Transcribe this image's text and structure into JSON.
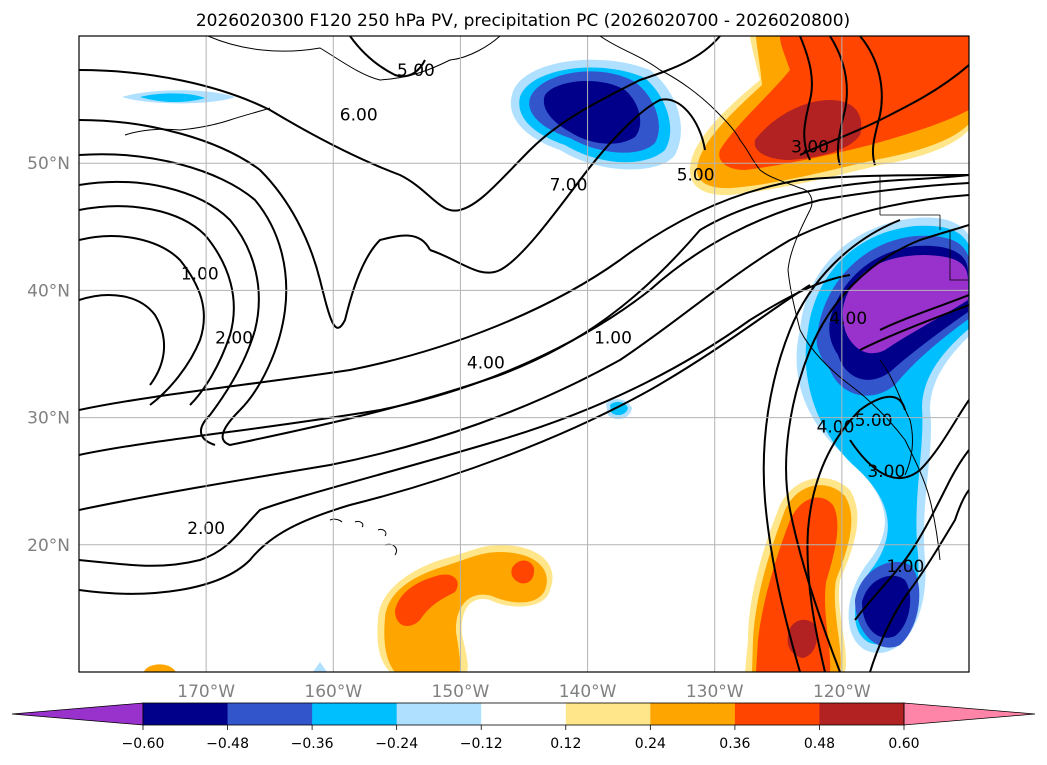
{
  "chart_data": {
    "type": "contour_map",
    "title": "2026020300 F120 250 hPa PV, precipitation PC (2026020700 - 2026020800)",
    "lon_range": [
      -180,
      -110
    ],
    "lat_range": [
      10,
      60
    ],
    "lat_ticks": [
      {
        "value": 20,
        "label": "20°N"
      },
      {
        "value": 30,
        "label": "30°N"
      },
      {
        "value": 40,
        "label": "40°N"
      },
      {
        "value": 50,
        "label": "50°N"
      }
    ],
    "lon_ticks": [
      {
        "value": -170,
        "label": "170°W"
      },
      {
        "value": -160,
        "label": "160°W"
      },
      {
        "value": -150,
        "label": "150°W"
      },
      {
        "value": -140,
        "label": "140°W"
      },
      {
        "value": -130,
        "label": "130°W"
      },
      {
        "value": -120,
        "label": "120°W"
      }
    ],
    "colorbar": {
      "levels": [
        -0.6,
        -0.48,
        -0.36,
        -0.24,
        -0.12,
        0.12,
        0.24,
        0.36,
        0.48,
        0.6
      ],
      "tick_labels": [
        "−0.60",
        "−0.48",
        "−0.36",
        "−0.24",
        "−0.12",
        "0.12",
        "0.24",
        "0.36",
        "0.48",
        "0.60"
      ],
      "colors": [
        "#9932cc",
        "#00008b",
        "#3355cc",
        "#00bfff",
        "#b0e0ff",
        "#ffffff",
        "#ffe68a",
        "#ffa500",
        "#ff4500",
        "#b22222",
        "#ff85a8"
      ],
      "extend": "both"
    },
    "pv_contour_levels": [
      1.0,
      2.0,
      3.0,
      4.0,
      5.0,
      6.0,
      7.0
    ],
    "contour_labels": [
      {
        "text": "1.00",
        "lon": -170.5,
        "lat": 41
      },
      {
        "text": "2.00",
        "lon": -167.8,
        "lat": 36
      },
      {
        "text": "2.00",
        "lon": -170,
        "lat": 21
      },
      {
        "text": "4.00",
        "lon": -148,
        "lat": 34
      },
      {
        "text": "1.00",
        "lon": -138,
        "lat": 36
      },
      {
        "text": "6.00",
        "lon": -158,
        "lat": 53.5
      },
      {
        "text": "5.00",
        "lon": -153.5,
        "lat": 57
      },
      {
        "text": "7.00",
        "lon": -141.5,
        "lat": 48
      },
      {
        "text": "5.00",
        "lon": -131.5,
        "lat": 48.8
      },
      {
        "text": "3.00",
        "lon": -122.5,
        "lat": 51
      },
      {
        "text": "4.00",
        "lon": -119.5,
        "lat": 37.5
      },
      {
        "text": "4.00",
        "lon": -120.5,
        "lat": 29
      },
      {
        "text": "5.00",
        "lon": -117.5,
        "lat": 29.5
      },
      {
        "text": "3.00",
        "lon": -116.5,
        "lat": 25.5
      },
      {
        "text": "1.00",
        "lon": -115,
        "lat": 18
      }
    ]
  }
}
